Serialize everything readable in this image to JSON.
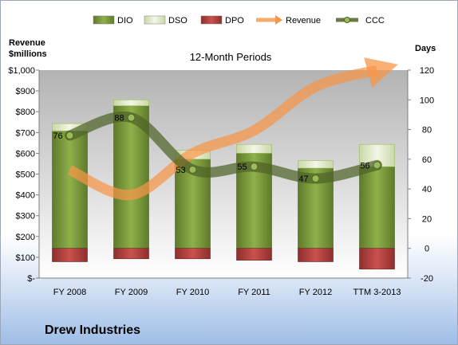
{
  "chart_data": {
    "type": "bar",
    "title": "12-Month Periods",
    "left_axis_label_line1": "Revenue",
    "left_axis_label_line2": "$millions",
    "right_axis_label": "Days",
    "categories": [
      "FY 2008",
      "FY 2009",
      "FY 2010",
      "FY 2011",
      "FY 2012",
      "TTM 3-2013"
    ],
    "left_axis": {
      "ylim": [
        0,
        1000
      ],
      "ticks": [
        0,
        100,
        200,
        300,
        400,
        500,
        600,
        700,
        800,
        900,
        1000
      ],
      "tick_labels": [
        "$-",
        "$100",
        "$200",
        "$300",
        "$400",
        "$500",
        "$600",
        "$700",
        "$800",
        "$900",
        "$1,000"
      ]
    },
    "right_axis": {
      "ylim": [
        -20,
        120
      ],
      "ticks": [
        -20,
        0,
        20,
        40,
        60,
        80,
        100,
        120
      ],
      "tick_labels": [
        "-20",
        "0",
        "20",
        "40",
        "60",
        "80",
        "100",
        "120"
      ]
    },
    "series": [
      {
        "name": "DIO",
        "axis": "days",
        "kind": "stacked-bar",
        "color": "#77933c",
        "values": [
          79,
          96,
          60,
          64,
          54,
          55
        ]
      },
      {
        "name": "DSO",
        "axis": "days",
        "kind": "stacked-bar",
        "color": "#ebf1de",
        "values": [
          5,
          4,
          6,
          6,
          5,
          15
        ]
      },
      {
        "name": "DPO",
        "axis": "days",
        "kind": "negative-bar",
        "color": "#c0504d",
        "values": [
          -9,
          -7,
          -7,
          -8,
          -9,
          -14
        ]
      },
      {
        "name": "Revenue",
        "axis": "revenue",
        "kind": "line",
        "color": "#f79646",
        "values": [
          520,
          400,
          600,
          710,
          920,
          1000
        ]
      },
      {
        "name": "CCC",
        "axis": "days",
        "kind": "line",
        "color": "#4f6228",
        "values": [
          76,
          88,
          53,
          55,
          47,
          56
        ]
      }
    ],
    "legend_position": "top",
    "grid": false
  },
  "company_name": "Drew Industries"
}
